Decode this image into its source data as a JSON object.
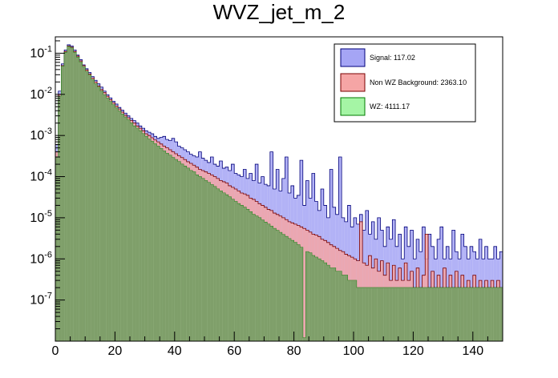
{
  "chart_data": {
    "type": "histogram",
    "title": "WVZ_jet_m_2",
    "xlabel": "",
    "ylabel": "",
    "xlim": [
      0,
      150
    ],
    "ylim": [
      1e-08,
      0.25
    ],
    "yscale": "log",
    "grid": false,
    "legend_position": "top-right",
    "x_ticks": [
      0,
      20,
      40,
      60,
      80,
      100,
      120,
      140
    ],
    "y_ticks": [
      {
        "value": 1e-07,
        "base": "10",
        "exp": "-7"
      },
      {
        "value": 1e-06,
        "base": "10",
        "exp": "-6"
      },
      {
        "value": 1e-05,
        "base": "10",
        "exp": "-5"
      },
      {
        "value": 0.0001,
        "base": "10",
        "exp": "-4"
      },
      {
        "value": 0.001,
        "base": "10",
        "exp": "-3"
      },
      {
        "value": 0.01,
        "base": "10",
        "exp": "-2"
      },
      {
        "value": 0.1,
        "base": "10",
        "exp": "-1"
      }
    ],
    "series": [
      {
        "name": "Signal: 117.02",
        "fill": "#a5a5f5",
        "stroke": "#00007a",
        "bin_width": 1,
        "values": [
          0.0006,
          0.012,
          0.055,
          0.12,
          0.16,
          0.15,
          0.12,
          0.09,
          0.07,
          0.052,
          0.042,
          0.034,
          0.027,
          0.022,
          0.018,
          0.015,
          0.012,
          0.0098,
          0.0082,
          0.0068,
          0.0058,
          0.0048,
          0.0041,
          0.0035,
          0.003,
          0.0026,
          0.0023,
          0.002,
          0.0017,
          0.0015,
          0.0013,
          0.0012,
          0.0011,
          0.00095,
          0.00085,
          0.0009,
          0.00095,
          0.0008,
          0.00075,
          0.00085,
          0.0007,
          0.00055,
          0.0005,
          0.00045,
          0.0004,
          0.00035,
          0.00032,
          0.0003,
          0.0004,
          0.00028,
          0.00025,
          0.00022,
          0.0003,
          0.0002,
          0.00018,
          0.00024,
          0.00016,
          0.00017,
          0.00014,
          0.0002,
          0.00012,
          0.00011,
          0.0001,
          0.00015,
          9e-05,
          0.00012,
          8e-05,
          0.0002,
          7e-05,
          0.0001,
          6.5e-05,
          6e-05,
          0.0004,
          5e-05,
          0.00015,
          4.5e-05,
          9e-05,
          0.0003,
          4e-05,
          6e-05,
          3e-05,
          3.5e-05,
          0.00025,
          2e-05,
          8e-05,
          3e-05,
          0.00012,
          2.5e-05,
          1.5e-05,
          5e-05,
          2e-05,
          1e-05,
          0.00015,
          1.8e-05,
          1.2e-05,
          0.0003,
          1e-05,
          8e-06,
          2e-05,
          6e-06,
          1e-05,
          7e-06,
          1.2e-05,
          5e-06,
          1.5e-05,
          4e-06,
          8e-06,
          3e-06,
          1e-05,
          5e-06,
          2e-06,
          6e-06,
          3e-06,
          9e-06,
          2e-06,
          4e-06,
          1e-06,
          6e-06,
          2e-06,
          5e-06,
          1e-06,
          3e-06,
          1.5e-06,
          6e-06,
          1e-06,
          4e-06,
          2e-06,
          1e-06,
          3e-06,
          6e-06,
          1e-06,
          2e-06,
          1e-06,
          5e-06,
          1.5e-06,
          1e-06,
          4e-06,
          2e-06,
          1e-06,
          2e-06,
          1.5e-06,
          1e-06,
          3e-06,
          1e-06,
          2e-06,
          1e-06,
          1e-06,
          2e-06,
          1e-06,
          1.5e-06
        ]
      },
      {
        "name": "Non WZ Background: 2363.10",
        "fill": "#f5a5a5",
        "stroke": "#7a0000",
        "bin_width": 1,
        "values": [
          0.0004,
          0.01,
          0.05,
          0.11,
          0.15,
          0.14,
          0.11,
          0.085,
          0.065,
          0.05,
          0.039,
          0.031,
          0.025,
          0.02,
          0.016,
          0.013,
          0.011,
          0.009,
          0.0074,
          0.0062,
          0.0052,
          0.0044,
          0.0037,
          0.0031,
          0.0027,
          0.0023,
          0.002,
          0.0017,
          0.0015,
          0.0013,
          0.0011,
          0.001,
          0.00088,
          0.00078,
          0.0007,
          0.00062,
          0.00055,
          0.0005,
          0.00045,
          0.0004,
          0.00036,
          0.00032,
          0.00029,
          0.00026,
          0.00023,
          0.00021,
          0.00019,
          0.00017,
          0.00015,
          0.00014,
          0.00013,
          0.00012,
          0.00011,
          0.0001,
          9e-05,
          8e-05,
          7.5e-05,
          7e-05,
          6e-05,
          5.5e-05,
          5e-05,
          4.5e-05,
          4e-05,
          3.8e-05,
          3.5e-05,
          3e-05,
          2.8e-05,
          2.5e-05,
          2.2e-05,
          2e-05,
          1.8e-05,
          1.6e-05,
          1.5e-05,
          1.3e-05,
          1.2e-05,
          1.1e-05,
          1e-05,
          9e-06,
          8e-06,
          7.5e-06,
          7e-06,
          6.5e-06,
          6e-06,
          5.5e-06,
          5e-06,
          4.5e-06,
          4e-06,
          3.8e-06,
          3.5e-06,
          3e-06,
          2.8e-06,
          2.5e-06,
          2.2e-06,
          2e-06,
          1.8e-06,
          1.6e-06,
          1.5e-06,
          1.3e-06,
          1.2e-06,
          1.1e-06,
          1e-06,
          9e-07,
          8e-06,
          8e-07,
          7e-07,
          1.2e-06,
          6e-07,
          1e-06,
          5e-07,
          9e-07,
          4e-07,
          8e-07,
          3e-07,
          7e-07,
          3e-07,
          6e-07,
          3e-07,
          8e-07,
          3e-07,
          5e-07,
          2e-07,
          6e-07,
          2e-07,
          4e-07,
          4e-06,
          2e-07,
          5e-07,
          2e-07,
          4e-07,
          2e-07,
          6e-07,
          2e-07,
          4e-07,
          2e-07,
          5e-07,
          2e-07,
          4e-07,
          2e-07,
          3e-07,
          2e-07,
          4e-07,
          2e-07,
          3e-07,
          2e-07,
          3e-07,
          2e-07,
          3e-07,
          2e-07,
          3e-07,
          2e-07
        ]
      },
      {
        "name": "WZ: 4111.17",
        "fill": "#a5f5a5",
        "stroke": "#007a00",
        "bin_width": 1,
        "values": [
          0.0003,
          0.009,
          0.048,
          0.105,
          0.145,
          0.135,
          0.105,
          0.08,
          0.061,
          0.047,
          0.036,
          0.029,
          0.023,
          0.018,
          0.015,
          0.012,
          0.0098,
          0.0081,
          0.0067,
          0.0056,
          0.0047,
          0.0039,
          0.0033,
          0.0028,
          0.0024,
          0.002,
          0.0017,
          0.0015,
          0.0013,
          0.0011,
          0.00095,
          0.00082,
          0.00072,
          0.00063,
          0.00055,
          0.00048,
          0.00042,
          0.00037,
          0.00033,
          0.00029,
          0.00026,
          0.00023,
          0.0002,
          0.00018,
          0.00016,
          0.00014,
          0.00013,
          0.00011,
          0.0001,
          9e-05,
          8e-05,
          7.2e-05,
          6.4e-05,
          5.7e-05,
          5e-05,
          4.5e-05,
          4e-05,
          3.6e-05,
          3.2e-05,
          2.8e-05,
          2.5e-05,
          2.2e-05,
          2e-05,
          1.8e-05,
          1.6e-05,
          1.4e-05,
          1.2e-05,
          1.1e-05,
          1e-05,
          8.8e-06,
          7.8e-06,
          7e-06,
          6.2e-06,
          5.5e-06,
          4.9e-06,
          4.4e-06,
          3.9e-06,
          3.5e-06,
          3.1e-06,
          2.8e-06,
          2.5e-06,
          2.2e-06,
          1.9e-06,
          1.2e-08,
          1.5e-06,
          1.4e-06,
          1.2e-06,
          1.1e-06,
          1e-06,
          9e-07,
          8e-07,
          7e-07,
          6e-07,
          6e-07,
          5e-07,
          5e-07,
          4e-07,
          4e-07,
          3e-07,
          3e-07,
          3e-07,
          2e-07,
          2e-07,
          2e-07,
          2e-07,
          2e-07,
          2e-07,
          2e-07,
          2e-07,
          2e-07,
          2e-07,
          2e-07,
          2e-07,
          2e-07,
          2e-07,
          2e-07,
          2e-07,
          2e-07,
          2e-07,
          2e-07,
          2e-07,
          2e-07,
          2e-07,
          2e-07,
          2e-07,
          2e-07,
          2e-07,
          2e-07,
          2e-07,
          2e-07,
          2e-07,
          2e-07,
          2e-07,
          2e-07,
          2e-07,
          2e-07,
          2e-07,
          2e-07,
          2e-07,
          2e-07,
          2e-07,
          2e-07,
          2e-07,
          2e-07,
          2e-07,
          2e-07,
          2e-07,
          2e-07,
          2e-07,
          2e-07
        ]
      }
    ],
    "overlap_color": "#7f9f6a"
  }
}
